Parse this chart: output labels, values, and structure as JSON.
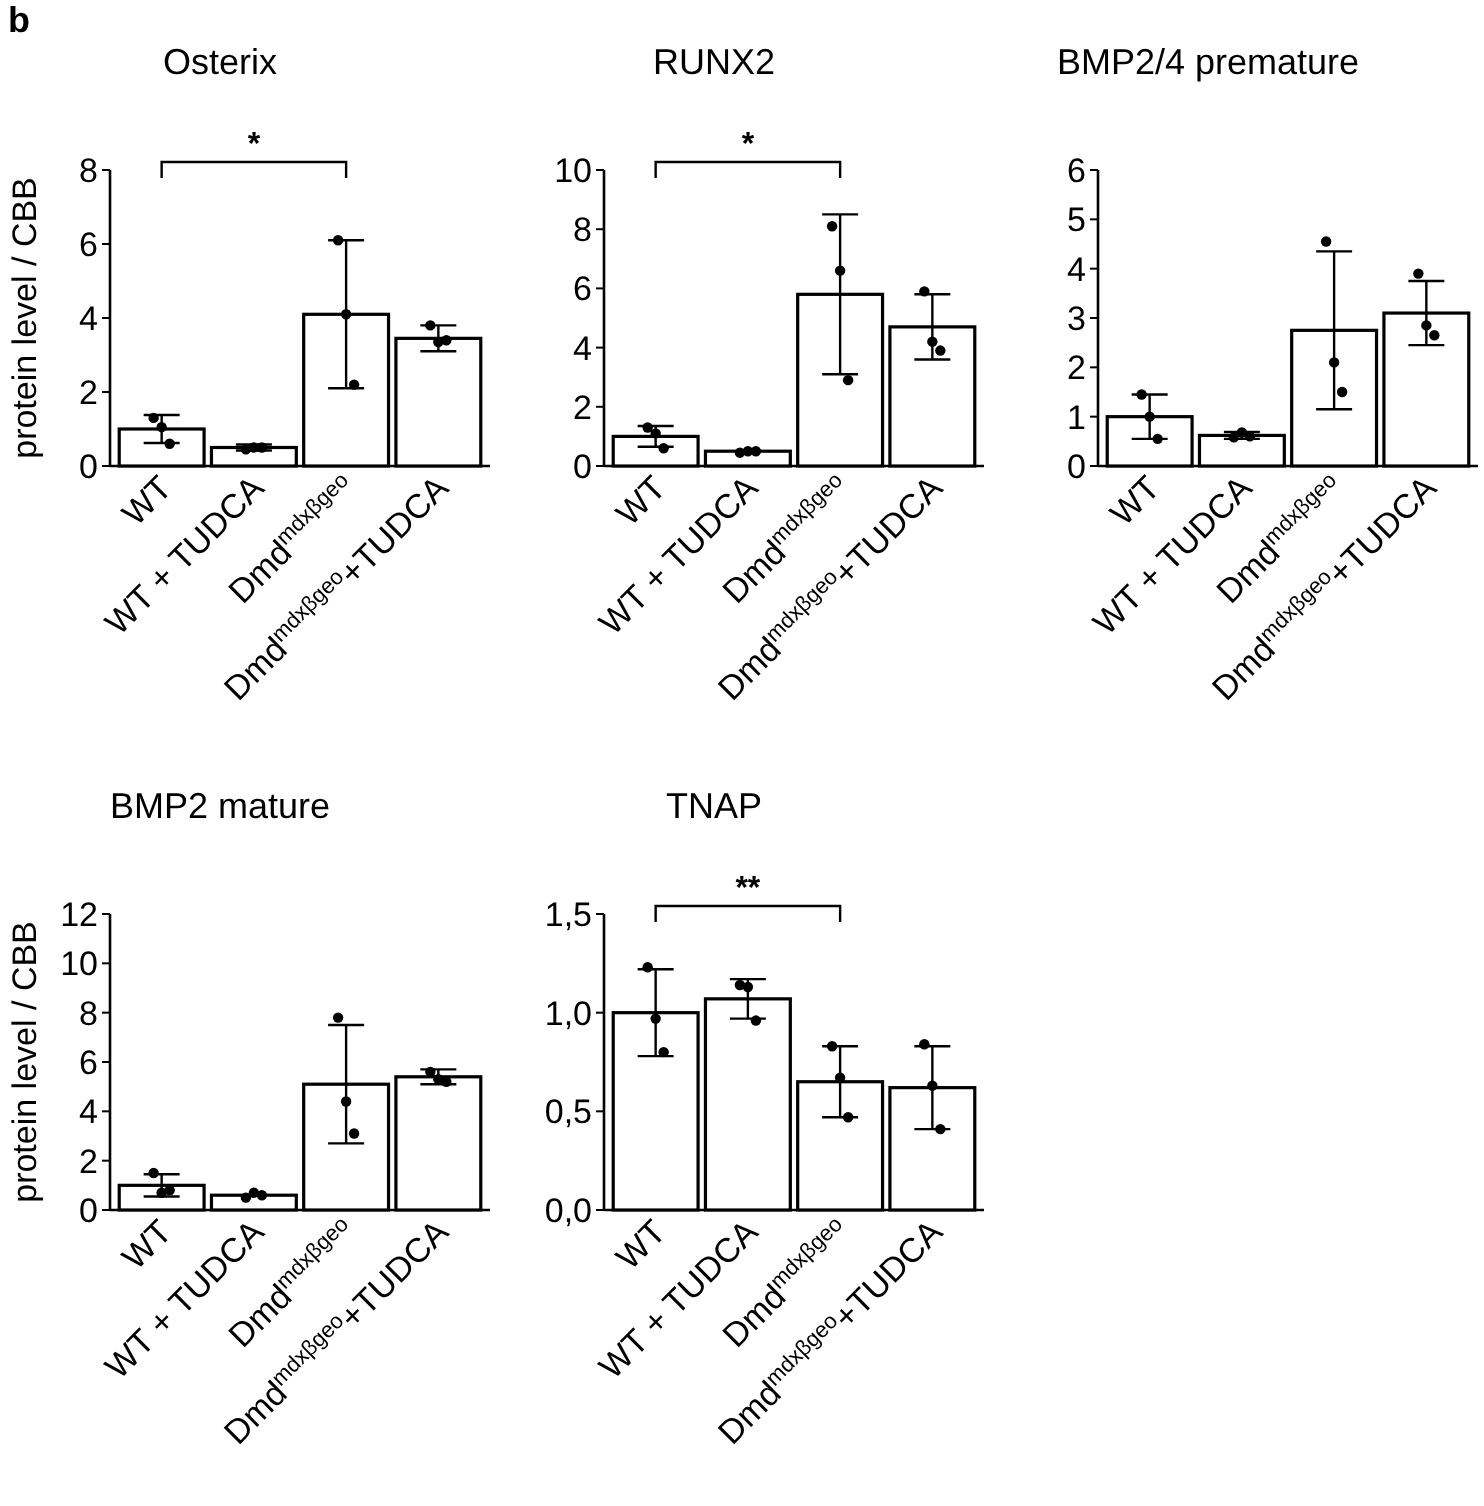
{
  "chart_data": [
    {
      "type": "bar",
      "title": "Osterix",
      "ylabel": "protein level / CBB",
      "categories": [
        "WT",
        "WT + TUDCA",
        "Dmd$^{mdxβgeo}$",
        "Dmd$^{mdxβgeo}$+TUDCA"
      ],
      "ylim": [
        0,
        8
      ],
      "yticks": [
        0,
        2,
        4,
        6,
        8
      ],
      "grid": false,
      "annotations": [
        "b",
        "*"
      ],
      "series": [
        {
          "color": "#ffffff",
          "values": [
            1.0,
            0.5,
            4.1,
            3.45
          ],
          "errors": [
            0.38,
            0.08,
            2.0,
            0.35
          ]
        },
        {
          "type": "scatter",
          "color": "#000000",
          "marker": "circle",
          "x": [
            "WT",
            "WT",
            "WT",
            "WT + TUDCA",
            "WT + TUDCA",
            "WT + TUDCA",
            "Dmd$^{mdxβgeo}$",
            "Dmd$^{mdxβgeo}$",
            "Dmd$^{mdxβgeo}$",
            "Dmd$^{mdxβgeo}$+TUDCA",
            "Dmd$^{mdxβgeo}$+TUDCA",
            "Dmd$^{mdxβgeo}$+TUDCA"
          ],
          "values": [
            1.3,
            1.05,
            0.6,
            0.45,
            0.5,
            0.5,
            6.1,
            4.1,
            2.2,
            3.8,
            3.35,
            3.4
          ]
        }
      ]
    },
    {
      "type": "bar",
      "title": "RUNX2",
      "categories": [
        "WT",
        "WT + TUDCA",
        "Dmd$^{mdxβgeo}$",
        "Dmd$^{mdxβgeo}$+TUDCA"
      ],
      "ylim": [
        0,
        10
      ],
      "yticks": [
        0,
        2,
        4,
        6,
        8,
        10
      ],
      "grid": false,
      "annotations": [
        "*"
      ],
      "series": [
        {
          "color": "#ffffff",
          "values": [
            1.0,
            0.5,
            5.8,
            4.7
          ],
          "errors": [
            0.35,
            null,
            2.7,
            1.1
          ]
        },
        {
          "type": "scatter",
          "color": "#000000",
          "marker": "circle",
          "x": [
            "WT",
            "WT",
            "WT",
            "WT + TUDCA",
            "WT + TUDCA",
            "WT + TUDCA",
            "Dmd$^{mdxβgeo}$",
            "Dmd$^{mdxβgeo}$",
            "Dmd$^{mdxβgeo}$",
            "Dmd$^{mdxβgeo}$+TUDCA",
            "Dmd$^{mdxβgeo}$+TUDCA",
            "Dmd$^{mdxβgeo}$+TUDCA"
          ],
          "values": [
            1.3,
            1.1,
            0.6,
            0.45,
            0.5,
            0.5,
            8.1,
            6.6,
            2.9,
            5.9,
            4.2,
            3.9
          ]
        }
      ]
    },
    {
      "type": "bar",
      "title": "BMP2/4 premature",
      "categories": [
        "WT",
        "WT + TUDCA",
        "Dmd$^{mdxβgeo}$",
        "Dmd$^{mdxβgeo}$+TUDCA"
      ],
      "ylim": [
        0,
        6
      ],
      "yticks": [
        0,
        1,
        2,
        3,
        4,
        5,
        6
      ],
      "grid": false,
      "series": [
        {
          "color": "#ffffff",
          "values": [
            1.0,
            0.62,
            2.75,
            3.1
          ],
          "errors": [
            0.45,
            0.07,
            1.6,
            0.65
          ]
        },
        {
          "type": "scatter",
          "color": "#000000",
          "marker": "circle",
          "x": [
            "WT",
            "WT",
            "WT",
            "WT + TUDCA",
            "WT + TUDCA",
            "WT + TUDCA",
            "Dmd$^{mdxβgeo}$",
            "Dmd$^{mdxβgeo}$",
            "Dmd$^{mdxβgeo}$",
            "Dmd$^{mdxβgeo}$+TUDCA",
            "Dmd$^{mdxβgeo}$+TUDCA",
            "Dmd$^{mdxβgeo}$+TUDCA"
          ],
          "values": [
            1.45,
            1.0,
            0.55,
            0.58,
            0.68,
            0.6,
            4.55,
            2.1,
            1.5,
            3.9,
            2.85,
            2.65
          ]
        }
      ]
    },
    {
      "type": "bar",
      "title": "BMP2 mature",
      "ylabel": "protein level / CBB",
      "categories": [
        "WT",
        "WT + TUDCA",
        "Dmd$^{mdxβgeo}$",
        "Dmd$^{mdxβgeo}$+TUDCA"
      ],
      "ylim": [
        0,
        12
      ],
      "yticks": [
        0,
        2,
        4,
        6,
        8,
        10,
        12
      ],
      "grid": false,
      "series": [
        {
          "color": "#ffffff",
          "values": [
            1.0,
            0.6,
            5.1,
            5.4
          ],
          "errors": [
            0.45,
            null,
            2.4,
            0.3
          ]
        },
        {
          "type": "scatter",
          "color": "#000000",
          "marker": "circle",
          "x": [
            "WT",
            "WT",
            "WT",
            "WT + TUDCA",
            "WT + TUDCA",
            "WT + TUDCA",
            "Dmd$^{mdxβgeo}$",
            "Dmd$^{mdxβgeo}$",
            "Dmd$^{mdxβgeo}$",
            "Dmd$^{mdxβgeo}$+TUDCA",
            "Dmd$^{mdxβgeo}$+TUDCA",
            "Dmd$^{mdxβgeo}$+TUDCA"
          ],
          "values": [
            1.5,
            0.7,
            0.8,
            0.5,
            0.7,
            0.6,
            7.8,
            4.4,
            3.1,
            5.6,
            5.3,
            5.2
          ]
        }
      ]
    },
    {
      "type": "bar",
      "title": "TNAP",
      "categories": [
        "WT",
        "WT + TUDCA",
        "Dmd$^{mdxβgeo}$",
        "Dmd$^{mdxβgeo}$+TUDCA"
      ],
      "ylim": [
        0,
        1.5
      ],
      "yticks": [
        {
          "value": 0,
          "label": "0,0"
        },
        {
          "value": 0.5,
          "label": "0,5"
        },
        {
          "value": 1.0,
          "label": "1,0"
        },
        {
          "value": 1.5,
          "label": "1,5"
        }
      ],
      "grid": false,
      "annotations": [
        "**"
      ],
      "series": [
        {
          "color": "#ffffff",
          "values": [
            1.0,
            1.07,
            0.65,
            0.62
          ],
          "errors": [
            0.22,
            0.1,
            0.18,
            0.21
          ]
        },
        {
          "type": "scatter",
          "color": "#000000",
          "marker": "circle",
          "x": [
            "WT",
            "WT",
            "WT",
            "WT + TUDCA",
            "WT + TUDCA",
            "WT + TUDCA",
            "Dmd$^{mdxβgeo}$",
            "Dmd$^{mdxβgeo}$",
            "Dmd$^{mdxβgeo}$",
            "Dmd$^{mdxβgeo}$+TUDCA",
            "Dmd$^{mdxβgeo}$+TUDCA",
            "Dmd$^{mdxβgeo}$+TUDCA"
          ],
          "values": [
            1.23,
            0.97,
            0.8,
            1.14,
            1.13,
            0.96,
            0.83,
            0.67,
            0.47,
            0.84,
            0.63,
            0.41
          ]
        }
      ]
    }
  ]
}
